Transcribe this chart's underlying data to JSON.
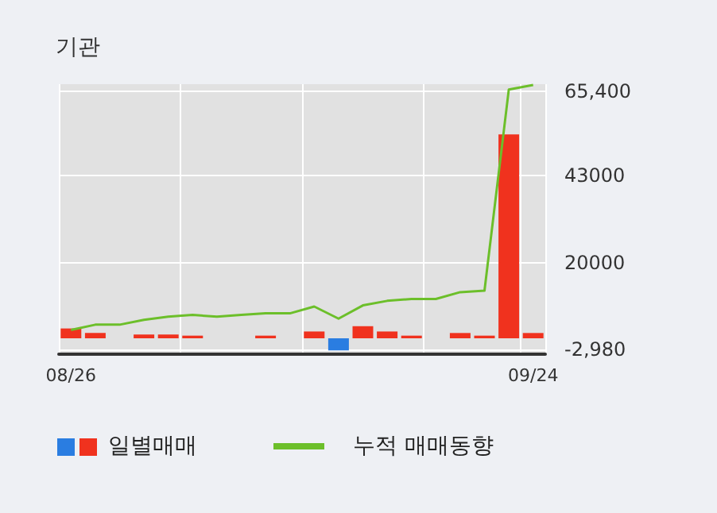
{
  "chart_data": {
    "type": "bar",
    "title": "기관",
    "categories": [
      "08/26",
      null,
      null,
      null,
      null,
      null,
      null,
      null,
      null,
      null,
      null,
      null,
      null,
      null,
      null,
      null,
      null,
      null,
      null,
      "09/24"
    ],
    "series": [
      {
        "name": "일별매매",
        "color": "#f0321e",
        "colors": [
          "#f0321e",
          "#f0321e",
          "#f0321e",
          "#f0321e",
          "#f0321e",
          "#f0321e",
          "#f0321e",
          "#f0321e",
          "#f0321e",
          "#f0321e",
          "#f0321e",
          "#2a7de1",
          "#f0321e",
          "#f0321e",
          "#f0321e",
          "#f0321e",
          "#f0321e",
          "#f0321e",
          "#f0321e",
          "#f0321e"
        ],
        "values": [
          2600,
          1400,
          null,
          1000,
          1000,
          700,
          null,
          null,
          700,
          null,
          1800,
          -3200,
          3200,
          1800,
          700,
          null,
          1400,
          700,
          53900,
          1400
        ]
      },
      {
        "name": "누적 매매동향",
        "type": "line",
        "color": "#6cbf2a",
        "values": [
          2200,
          3600,
          3600,
          4900,
          5700,
          6200,
          5700,
          6200,
          6600,
          6600,
          8400,
          5200,
          8700,
          9900,
          10400,
          10400,
          12200,
          12600,
          65800,
          67000
        ]
      }
    ],
    "ylim": [
      -4200,
      67200
    ],
    "yticks": [
      {
        "value": -2980,
        "label": "-2,980"
      },
      20000,
      43000,
      {
        "value": 65400,
        "label": "65,400"
      }
    ],
    "grid": true,
    "legend": "bottom",
    "marker": "none"
  }
}
